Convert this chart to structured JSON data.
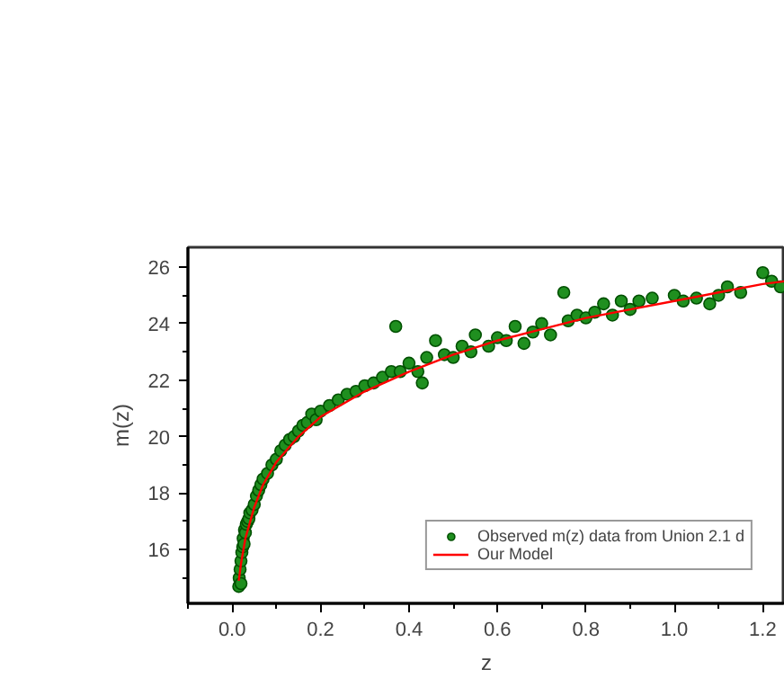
{
  "chart_data": {
    "type": "scatter",
    "xlabel": "z",
    "ylabel": "m(z)",
    "xlim": [
      -0.1,
      1.25
    ],
    "ylim": [
      14.1,
      26.7
    ],
    "xticks": [
      {
        "value": 0,
        "label": "0.0"
      },
      0.2,
      0.4,
      0.6,
      0.8,
      {
        "value": 1,
        "label": "1.0"
      },
      1.2
    ],
    "yticks": [
      16,
      18,
      20,
      22,
      24,
      26
    ],
    "grid": false,
    "legend": "bottom right",
    "series": [
      {
        "name": "Observed m(z) data from Union 2.1 d",
        "marker": "circle",
        "color": "#1f8f1f",
        "x": [
          0.015,
          0.016,
          0.018,
          0.02,
          0.02,
          0.022,
          0.024,
          0.025,
          0.027,
          0.028,
          0.03,
          0.032,
          0.035,
          0.038,
          0.04,
          0.045,
          0.05,
          0.055,
          0.06,
          0.065,
          0.07,
          0.08,
          0.09,
          0.1,
          0.11,
          0.12,
          0.13,
          0.14,
          0.15,
          0.16,
          0.17,
          0.18,
          0.19,
          0.2,
          0.22,
          0.24,
          0.26,
          0.28,
          0.3,
          0.32,
          0.34,
          0.36,
          0.37,
          0.38,
          0.4,
          0.42,
          0.43,
          0.44,
          0.46,
          0.48,
          0.5,
          0.52,
          0.54,
          0.55,
          0.58,
          0.6,
          0.62,
          0.64,
          0.66,
          0.68,
          0.7,
          0.72,
          0.75,
          0.76,
          0.78,
          0.8,
          0.82,
          0.84,
          0.86,
          0.88,
          0.9,
          0.92,
          0.95,
          1.0,
          1.02,
          1.05,
          1.08,
          1.1,
          1.12,
          1.15,
          1.2,
          1.22,
          1.24
        ],
        "values": [
          14.7,
          15.0,
          15.3,
          14.8,
          15.6,
          15.9,
          16.1,
          16.4,
          16.2,
          16.7,
          16.6,
          16.9,
          17.0,
          17.1,
          17.3,
          17.4,
          17.6,
          17.9,
          18.1,
          18.3,
          18.5,
          18.7,
          19.0,
          19.2,
          19.5,
          19.7,
          19.9,
          20.0,
          20.2,
          20.4,
          20.5,
          20.8,
          20.6,
          20.9,
          21.1,
          21.3,
          21.5,
          21.6,
          21.8,
          21.9,
          22.1,
          22.3,
          23.9,
          22.3,
          22.6,
          22.3,
          21.9,
          22.8,
          23.4,
          22.9,
          22.8,
          23.2,
          23.0,
          23.6,
          23.2,
          23.5,
          23.4,
          23.9,
          23.3,
          23.7,
          24.0,
          23.6,
          25.1,
          24.1,
          24.3,
          24.2,
          24.4,
          24.7,
          24.3,
          24.8,
          24.5,
          24.8,
          24.9,
          25.0,
          24.8,
          24.9,
          24.7,
          25.0,
          25.3,
          25.1,
          25.8,
          25.5,
          25.3
        ]
      },
      {
        "name": "Our Model",
        "type": "line",
        "marker": "none",
        "color": "#ff0000",
        "x": [
          0.015,
          0.02,
          0.03,
          0.05,
          0.07,
          0.1,
          0.15,
          0.2,
          0.3,
          0.4,
          0.5,
          0.6,
          0.7,
          0.8,
          0.9,
          1.0,
          1.1,
          1.2,
          1.25
        ],
        "values": [
          14.9,
          15.5,
          16.4,
          17.5,
          18.3,
          19.1,
          20.0,
          20.7,
          21.6,
          22.3,
          22.9,
          23.4,
          23.8,
          24.2,
          24.5,
          24.8,
          25.1,
          25.4,
          25.5
        ]
      }
    ]
  }
}
